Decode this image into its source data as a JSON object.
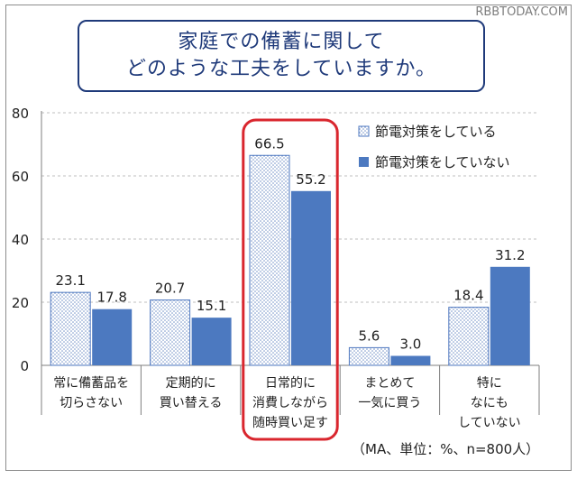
{
  "watermark": "RBBTODAY.COM",
  "title_lines": [
    "家庭での備蓄に関して",
    "どのような工夫をしていますか。"
  ],
  "note": "（MA、単位：%、n=800人）",
  "colors": {
    "frame": "#8c8c8c",
    "title_border": "#1f3a7a",
    "series_a_fill": "#ffffff",
    "series_a_dots": "#6a8ac4",
    "series_a_border": "#4f78c0",
    "series_b_fill": "#4c79c0",
    "highlight": "#d9262e",
    "grid": "#bfbfbf"
  },
  "chart_data": {
    "type": "bar",
    "categories": [
      [
        "常に備蓄品を",
        "切らさない"
      ],
      [
        "定期的に",
        "買い替える"
      ],
      [
        "日常的に",
        "消費しながら",
        "随時買い足す"
      ],
      [
        "まとめて",
        "一気に買う"
      ],
      [
        "特に",
        "なにも",
        "していない"
      ]
    ],
    "series": [
      {
        "name": "節電対策をしている",
        "values": [
          23.1,
          20.7,
          66.5,
          5.6,
          18.4
        ],
        "pattern": "dotted"
      },
      {
        "name": "節電対策をしていない",
        "values": [
          17.8,
          15.1,
          55.2,
          3.0,
          31.2
        ],
        "pattern": "solid"
      }
    ],
    "value_labels": [
      [
        "23.1",
        "20.7",
        "66.5",
        "5.6",
        "18.4"
      ],
      [
        "17.8",
        "15.1",
        "55.2",
        "3.0",
        "31.2"
      ]
    ],
    "y_ticks": [
      "0",
      "20",
      "40",
      "60",
      "80"
    ],
    "ylim": [
      0,
      80
    ],
    "grid": "horizontal-dashed",
    "legend": "top-right",
    "highlighted_category": 2
  }
}
